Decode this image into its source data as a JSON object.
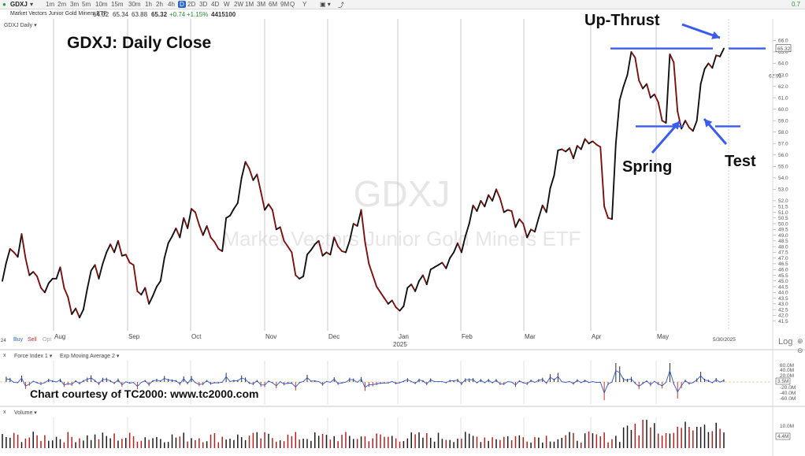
{
  "toolbar": {
    "symbol": "GDXJ",
    "timeframes": [
      "1m",
      "2m",
      "3m",
      "5m",
      "10m",
      "15m",
      "30m",
      "1h",
      "2h",
      "4h",
      "D",
      "2D",
      "3D",
      "4D",
      "W",
      "2W",
      "1M",
      "3M",
      "6M",
      "9M",
      "Q",
      "Y"
    ],
    "active_timeframe": "D",
    "right_label": "0.7"
  },
  "info": {
    "name": "Market Vectors Junior Gold Miners ETF",
    "open": "64.02",
    "high": "65.34",
    "low": "63.88",
    "close": "65.32",
    "change": "+0.74",
    "change_pct": "+1.15%",
    "volume": "4415100"
  },
  "panel": {
    "title": "GDXJ Daily",
    "watermark_symbol": "GDXJ",
    "watermark_name": "Market Vectors Junior Gold Miners ETF"
  },
  "annotations": {
    "main_title": "GDXJ:  Daily Close",
    "up_thrust": "Up-Thrust",
    "spring": "Spring",
    "test": "Test",
    "courtesy": "Chart courtesy of TC2000:  www.tc2000.com"
  },
  "footer": {
    "year_label": "2025",
    "date_label": "5/30/2025",
    "log_label": "Log",
    "buy": "Buy",
    "sell": "Sell",
    "opt": "Opt",
    "left_small": "24"
  },
  "indicators": {
    "force_index_label": "Force Index 1",
    "ema_label": "Exp Moving Average 2",
    "force_ticks": [
      "80.0M",
      "40.0M",
      "20.0M",
      "-20.0M",
      "-40.0M",
      "-60.0M"
    ],
    "volume_label": "Volume",
    "volume_ticks": [
      "10.0M"
    ],
    "volume_badge": "4.4M",
    "force_badge": "3.5M"
  },
  "price_badges": {
    "last": "65.32",
    "mid": "62.91"
  },
  "chart_data": {
    "type": "line",
    "title": "GDXJ:  Daily Close",
    "xlabel": "",
    "ylabel": "",
    "ylim": [
      41.2,
      66.3
    ],
    "y_ticks": [
      "41.5",
      "42.0",
      "42.5",
      "43.0",
      "43.5",
      "44.0",
      "44.5",
      "45.0",
      "45.5",
      "46.0",
      "46.5",
      "47.0",
      "47.5",
      "48.0",
      "48.5",
      "49.0",
      "49.5",
      "50.0",
      "50.5",
      "51.0",
      "51.5",
      "52.0",
      "53.0",
      "54.0",
      "55.0",
      "56.0",
      "57.0",
      "58.0",
      "59.0",
      "60.0",
      "61.0",
      "62.0",
      "63.0",
      "64.0",
      "65.0",
      "66.0"
    ],
    "month_labels": [
      "Aug",
      "Sep",
      "Oct",
      "Nov",
      "Dec",
      "Jan",
      "Feb",
      "Mar",
      "Apr",
      "May"
    ],
    "series": [
      {
        "values": [
          45.0,
          46.6,
          47.8,
          47.5,
          47.1,
          49.1,
          47.0,
          45.5,
          45.8,
          45.4,
          44.4,
          44.0,
          44.8,
          45.2,
          45.2,
          46.2,
          44.4,
          43.6,
          42.1,
          42.6,
          41.8,
          42.5,
          44.3,
          45.9,
          46.4,
          45.2,
          46.5,
          47.5,
          48.2,
          47.5,
          48.5,
          47.2,
          47.3,
          46.6,
          46.4,
          44.1,
          43.8,
          44.4,
          43.0,
          43.7,
          44.5,
          45.0,
          47.0,
          48.3,
          48.9,
          49.6,
          48.8,
          50.5,
          49.6,
          51.3,
          51.0,
          49.9,
          49.0,
          49.8,
          48.8,
          48.4,
          47.8,
          47.6,
          50.5,
          50.7,
          51.3,
          51.8,
          54.0,
          55.4,
          54.8,
          53.8,
          54.3,
          52.8,
          51.2,
          51.7,
          51.2,
          49.5,
          49.7,
          48.5,
          48.0,
          47.5,
          45.5,
          45.2,
          45.4,
          47.3,
          47.7,
          48.2,
          48.5,
          47.2,
          47.5,
          47.3,
          48.8,
          48.0,
          47.6,
          47.5,
          48.5,
          50.0,
          49.8,
          51.2,
          48.4,
          46.5,
          45.5,
          44.5,
          44.0,
          43.5,
          43.0,
          43.3,
          42.7,
          42.4,
          42.8,
          44.4,
          44.7,
          44.1,
          45.0,
          45.5,
          44.7,
          46.0,
          46.2,
          46.4,
          46.6,
          46.1,
          47.0,
          47.5,
          48.3,
          47.5,
          48.9,
          50.0,
          51.6,
          51.1,
          52.0,
          51.5,
          52.5,
          52.0,
          53.0,
          52.2,
          51.0,
          51.2,
          51.1,
          49.7,
          50.4,
          50.0,
          48.8,
          49.5,
          49.3,
          50.5,
          51.6,
          51.0,
          53.1,
          54.2,
          56.4,
          56.5,
          56.3,
          56.6,
          55.7,
          56.8,
          56.5,
          57.4,
          57.0,
          57.2,
          56.9,
          56.7,
          51.5,
          50.5,
          50.4,
          57.0,
          60.8,
          62.0,
          63.0,
          65.0,
          64.5,
          62.5,
          61.8,
          62.2,
          61.0,
          61.3,
          60.6,
          59.0,
          58.8,
          64.8,
          64.1,
          59.8,
          58.3,
          59.0,
          58.4,
          58.1,
          59.0,
          62.2,
          63.5,
          64.0,
          63.6,
          64.7,
          64.6,
          65.3
        ]
      }
    ],
    "markers": {
      "upthrust_level": 65.3,
      "spring_level": 58.5
    }
  }
}
